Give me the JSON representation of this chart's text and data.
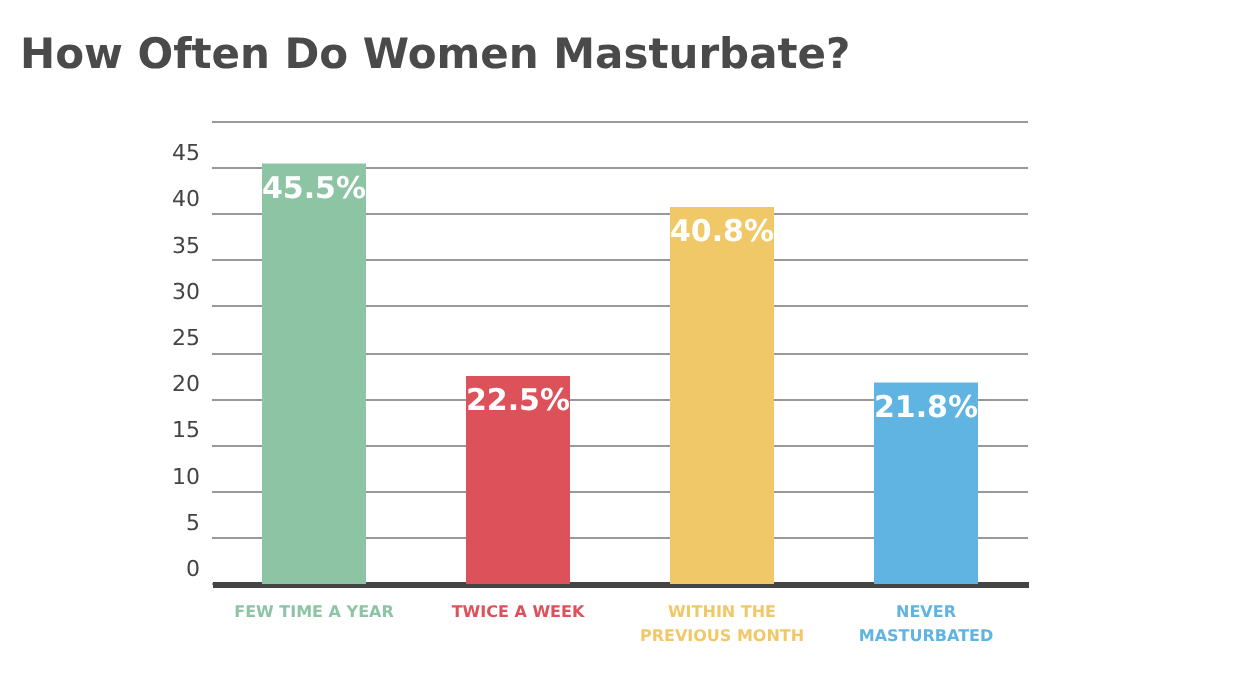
{
  "chart_data": {
    "type": "bar",
    "title": "How Often Do Women Masturbate?",
    "categories": [
      "FEW TIME A YEAR",
      "TWICE A WEEK",
      "WITHIN THE PREVIOUS MONTH",
      "NEVER MASTURBATED"
    ],
    "values": [
      45.5,
      22.5,
      40.8,
      21.8
    ],
    "colors": [
      "#8cc4a4",
      "#dd525a",
      "#f0c868",
      "#60b4e2"
    ],
    "value_labels": [
      "45.5%",
      "22.5%",
      "40.8%",
      "21.8%"
    ],
    "ylim": [
      0,
      50
    ],
    "yticks": [
      0,
      5,
      10,
      15,
      20,
      25,
      30,
      35,
      40,
      45,
      {
        "value": 50,
        "label": null
      }
    ],
    "grid": "y"
  }
}
